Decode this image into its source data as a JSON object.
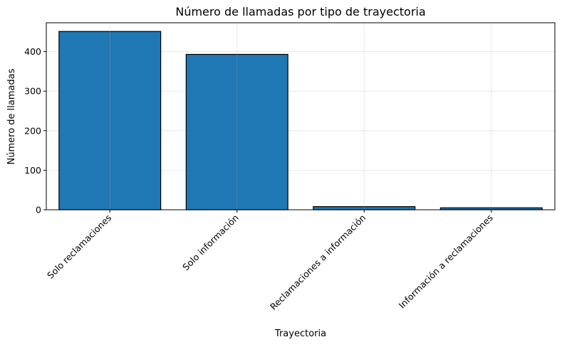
{
  "chart_data": {
    "type": "bar",
    "title": "Número de llamadas por tipo de trayectoria",
    "xlabel": "Trayectoria",
    "ylabel": "Número de llamadas",
    "categories": [
      "Solo reclamaciones",
      "Solo información",
      "Reclamaciones a información",
      "Información a reclamaciones"
    ],
    "values": [
      451,
      393,
      8,
      5
    ],
    "ylim": [
      0,
      473
    ],
    "yticks": [
      0,
      100,
      200,
      300,
      400
    ],
    "grid": true,
    "bar_color": "#1f77b4",
    "edge_color": "#000000"
  }
}
